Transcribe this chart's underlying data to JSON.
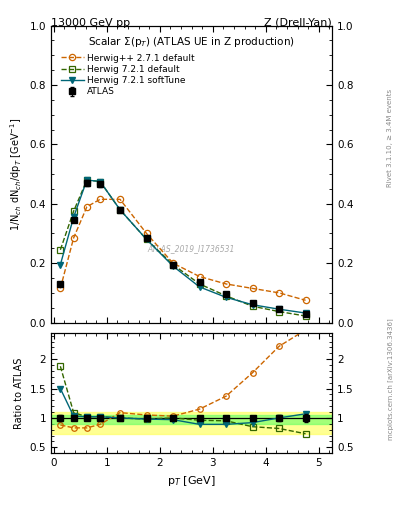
{
  "title_top_left": "13000 GeV pp",
  "title_top_right": "Z (Drell-Yan)",
  "plot_title": "Scalar Σ(p$_T$) (ATLAS UE in Z production)",
  "ylabel_main": "1/N$_{ch}$ dN$_{ch}$/dp$_T$ [GeV$^{-1}$]",
  "ylabel_ratio": "Ratio to ATLAS",
  "xlabel": "p$_T$ [GeV]",
  "right_label_top": "Rivet 3.1.10, ≥ 3.4M events",
  "right_label_bot": "mcplots.cern.ch [arXiv:1306.3436]",
  "watermark": "ATLAS_2019_I1736531",
  "atlas_x": [
    0.125,
    0.375,
    0.625,
    0.875,
    1.25,
    1.75,
    2.25,
    2.75,
    3.25,
    3.75,
    4.25,
    4.75
  ],
  "atlas_y": [
    0.13,
    0.345,
    0.47,
    0.465,
    0.38,
    0.285,
    0.195,
    0.135,
    0.095,
    0.065,
    0.045,
    0.03
  ],
  "atlas_yerr": [
    0.007,
    0.008,
    0.009,
    0.008,
    0.007,
    0.006,
    0.005,
    0.004,
    0.003,
    0.002,
    0.002,
    0.002
  ],
  "herwig_pp_x": [
    0.125,
    0.375,
    0.625,
    0.875,
    1.25,
    1.75,
    2.25,
    2.75,
    3.25,
    3.75,
    4.25,
    4.75
  ],
  "herwig_pp_y": [
    0.115,
    0.285,
    0.39,
    0.415,
    0.415,
    0.3,
    0.2,
    0.155,
    0.13,
    0.115,
    0.1,
    0.075
  ],
  "herwig72d_x": [
    0.125,
    0.375,
    0.625,
    0.875,
    1.25,
    1.75,
    2.25,
    2.75,
    3.25,
    3.75,
    4.25,
    4.75
  ],
  "herwig72d_y": [
    0.245,
    0.375,
    0.48,
    0.475,
    0.38,
    0.28,
    0.195,
    0.13,
    0.09,
    0.055,
    0.037,
    0.022
  ],
  "herwig72s_x": [
    0.125,
    0.375,
    0.625,
    0.875,
    1.25,
    1.75,
    2.25,
    2.75,
    3.25,
    3.75,
    4.25,
    4.75
  ],
  "herwig72s_y": [
    0.195,
    0.355,
    0.48,
    0.475,
    0.38,
    0.28,
    0.19,
    0.12,
    0.085,
    0.06,
    0.045,
    0.032
  ],
  "ratio_herwig_pp_x": [
    0.125,
    0.375,
    0.625,
    0.875,
    1.25,
    1.75,
    2.25,
    2.75,
    3.25,
    3.75,
    4.25,
    4.75
  ],
  "ratio_herwig_pp_y": [
    0.88,
    0.83,
    0.83,
    0.89,
    1.09,
    1.05,
    1.03,
    1.15,
    1.37,
    1.77,
    2.22,
    2.5
  ],
  "ratio_herwig72d_x": [
    0.125,
    0.375,
    0.625,
    0.875,
    1.25,
    1.75,
    2.25,
    2.75,
    3.25,
    3.75,
    4.25,
    4.75
  ],
  "ratio_herwig72d_y": [
    1.88,
    1.09,
    1.02,
    1.02,
    1.0,
    0.98,
    1.0,
    0.96,
    0.95,
    0.85,
    0.82,
    0.73
  ],
  "ratio_herwig72s_x": [
    0.125,
    0.375,
    0.625,
    0.875,
    1.25,
    1.75,
    2.25,
    2.75,
    3.25,
    3.75,
    4.25,
    4.75
  ],
  "ratio_herwig72s_y": [
    1.5,
    1.03,
    1.02,
    1.02,
    1.0,
    0.98,
    0.97,
    0.89,
    0.89,
    0.92,
    1.0,
    1.07
  ],
  "atlas_color": "#000000",
  "herwig_pp_color": "#cc6600",
  "herwig72d_color": "#336600",
  "herwig72s_color": "#006677",
  "band_yellow": [
    0.73,
    1.1
  ],
  "band_green": [
    0.9,
    1.05
  ],
  "xlim": [
    -0.05,
    5.25
  ],
  "ylim_main": [
    0.0,
    1.0
  ],
  "ylim_ratio": [
    0.4,
    2.45
  ],
  "ratio_yticks": [
    0.5,
    1.0,
    1.5,
    2.0
  ],
  "ratio_yticklabels": [
    "0.5",
    "1",
    "1.5",
    "2"
  ]
}
